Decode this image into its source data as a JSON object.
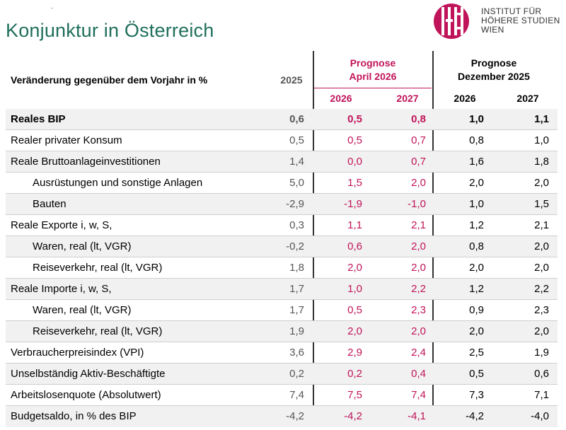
{
  "header": {
    "mark": "¨",
    "title": "Konjunktur in Österreich",
    "logo_lines": [
      "INSTITUT FÜR",
      "HÖHERE STUDIEN",
      "WIEN"
    ],
    "table_label": "Veränderung gegenüber dem Vorjahr in %",
    "col_2025": "2025",
    "prognose_april_line1": "Prognose",
    "prognose_april_line2": "April 2026",
    "prognose_dez_line1": "Prognose",
    "prognose_dez_line2": "Dezember 2025",
    "april_2026": "2026",
    "april_2027": "2027",
    "dez_2026": "2026",
    "dez_2027": "2027"
  },
  "colors": {
    "title": "#1f6f5c",
    "april": "#c0145a",
    "logo": "#c0145a"
  },
  "rows": [
    {
      "label": "Reales BIP",
      "v2025": "0,6",
      "a2026": "0,5",
      "a2027": "0,8",
      "d2026": "1,0",
      "d2027": "1,1"
    },
    {
      "label": "Realer privater Konsum",
      "v2025": "0,5",
      "a2026": "0,5",
      "a2027": "0,7",
      "d2026": "0,8",
      "d2027": "1,0"
    },
    {
      "label": "Reale Bruttoanlageinvestitionen",
      "v2025": "1,4",
      "a2026": "0,0",
      "a2027": "0,7",
      "d2026": "1,6",
      "d2027": "1,8"
    },
    {
      "label": "Ausrüstungen und sonstige Anlagen",
      "v2025": "5,0",
      "a2026": "1,5",
      "a2027": "2,0",
      "d2026": "2,0",
      "d2027": "2,0"
    },
    {
      "label": "Bauten",
      "v2025": "-2,9",
      "a2026": "-1,9",
      "a2027": "-1,0",
      "d2026": "1,0",
      "d2027": "1,5"
    },
    {
      "label": "Reale Exporte i, w, S,",
      "v2025": "0,3",
      "a2026": "1,1",
      "a2027": "2,1",
      "d2026": "1,2",
      "d2027": "2,1"
    },
    {
      "label": "Waren, real (lt, VGR)",
      "v2025": "-0,2",
      "a2026": "0,6",
      "a2027": "2,0",
      "d2026": "0,8",
      "d2027": "2,0"
    },
    {
      "label": "Reiseverkehr, real (lt, VGR)",
      "v2025": "1,8",
      "a2026": "2,0",
      "a2027": "2,0",
      "d2026": "2,0",
      "d2027": "2,0"
    },
    {
      "label": "Reale Importe i, w, S,",
      "v2025": "1,7",
      "a2026": "1,0",
      "a2027": "2,2",
      "d2026": "1,2",
      "d2027": "2,2"
    },
    {
      "label": "Waren, real (lt, VGR)",
      "v2025": "1,7",
      "a2026": "0,5",
      "a2027": "2,3",
      "d2026": "0,9",
      "d2027": "2,3"
    },
    {
      "label": "Reiseverkehr, real (lt, VGR)",
      "v2025": "1,9",
      "a2026": "2,0",
      "a2027": "2,0",
      "d2026": "2,0",
      "d2027": "2,0"
    },
    {
      "label": "Verbraucherpreisindex (VPI)",
      "v2025": "3,6",
      "a2026": "2,9",
      "a2027": "2,4",
      "d2026": "2,5",
      "d2027": "1,9"
    },
    {
      "label": "Unselbständig Aktiv-Beschäftigte",
      "v2025": "0,2",
      "a2026": "0,2",
      "a2027": "0,4",
      "d2026": "0,5",
      "d2027": "0,6"
    },
    {
      "label": "Arbeitslosenquote (Absolutwert)",
      "v2025": "7,4",
      "a2026": "7,5",
      "a2027": "7,4",
      "d2026": "7,3",
      "d2027": "7,1"
    },
    {
      "label": "Budgetsaldo, in % des BIP",
      "v2025": "-4,2",
      "a2026": "-4,2",
      "a2027": "-4,1",
      "d2026": "-4,2",
      "d2027": "-4,0"
    }
  ]
}
